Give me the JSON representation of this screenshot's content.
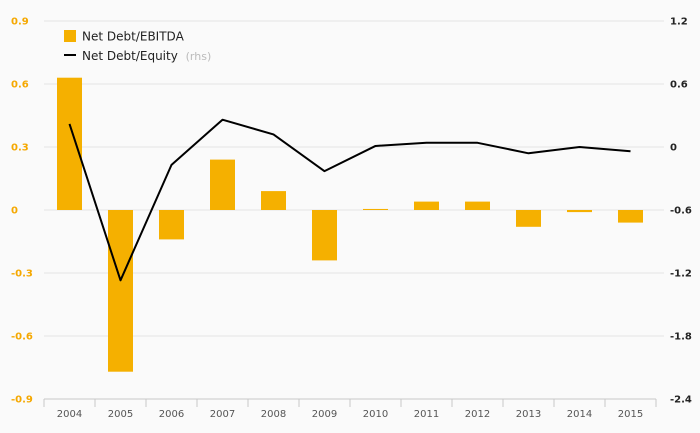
{
  "chart_data": {
    "type": "bar+line",
    "categories": [
      "2004",
      "2005",
      "2006",
      "2007",
      "2008",
      "2009",
      "2010",
      "2011",
      "2012",
      "2013",
      "2014",
      "2015"
    ],
    "series": [
      {
        "name": "Net Debt/EBITDA",
        "type": "bar",
        "axis": "left",
        "color": "#f5b000",
        "values": [
          0.63,
          -0.77,
          -0.14,
          0.24,
          0.09,
          -0.24,
          0.005,
          0.04,
          0.04,
          -0.08,
          -0.01,
          -0.06
        ]
      },
      {
        "name": "Net Debt/Equity",
        "name_suffix": "(rhs)",
        "type": "line",
        "axis": "right",
        "color": "#000000",
        "values": [
          0.22,
          -1.27,
          -0.17,
          0.26,
          0.12,
          -0.23,
          0.01,
          0.04,
          0.04,
          -0.06,
          0.0,
          -0.04
        ]
      }
    ],
    "left_axis": {
      "ticks": [
        "0.9",
        "0.6",
        "0.3",
        "0",
        "-0.3",
        "-0.6",
        "-0.9"
      ],
      "ylim": [
        -0.9,
        0.9
      ],
      "color": "#f5a800"
    },
    "right_axis": {
      "ticks": [
        "1.2",
        "0.6",
        "0",
        "-0.6",
        "-1.2",
        "-1.8",
        "-2.4"
      ],
      "ylim": [
        -2.4,
        1.2
      ]
    },
    "grid": true,
    "legend_position": "top-left"
  }
}
